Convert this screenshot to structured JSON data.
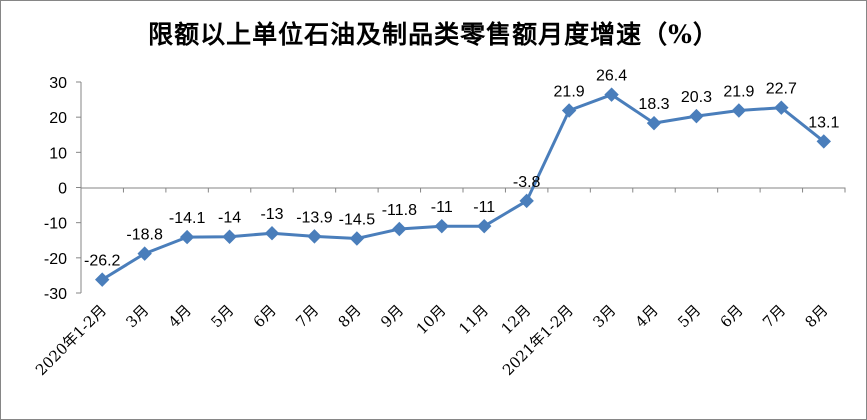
{
  "chart_data": {
    "type": "line",
    "title": "限额以上单位石油及制品类零售额月度增速（%）",
    "xlabel": "",
    "ylabel": "",
    "ylim": [
      -30,
      30
    ],
    "yticks": [
      30,
      20,
      10,
      0,
      -10,
      -20,
      -30
    ],
    "grid": false,
    "legend": "none",
    "color": "#4A7EBB",
    "categories": [
      "2020年1-2月",
      "3月",
      "4月",
      "5月",
      "6月",
      "7月",
      "8月",
      "9月",
      "10月",
      "11月",
      "12月",
      "2021年1-2月",
      "3月",
      "4月",
      "5月",
      "6月",
      "7月",
      "8月"
    ],
    "values": [
      -26.2,
      -18.8,
      -14.1,
      -14,
      -13,
      -13.9,
      -14.5,
      -11.8,
      -11,
      -11,
      -3.8,
      21.9,
      26.4,
      18.3,
      20.3,
      21.9,
      22.7,
      13.1
    ],
    "data_labels": [
      "-26.2",
      "-18.8",
      "-14.1",
      "-14",
      "-13",
      "-13.9",
      "-14.5",
      "-11.8",
      "-11",
      "-11",
      "-3.8",
      "21.9",
      "26.4",
      "18.3",
      "20.3",
      "21.9",
      "22.7",
      "13.1"
    ]
  }
}
